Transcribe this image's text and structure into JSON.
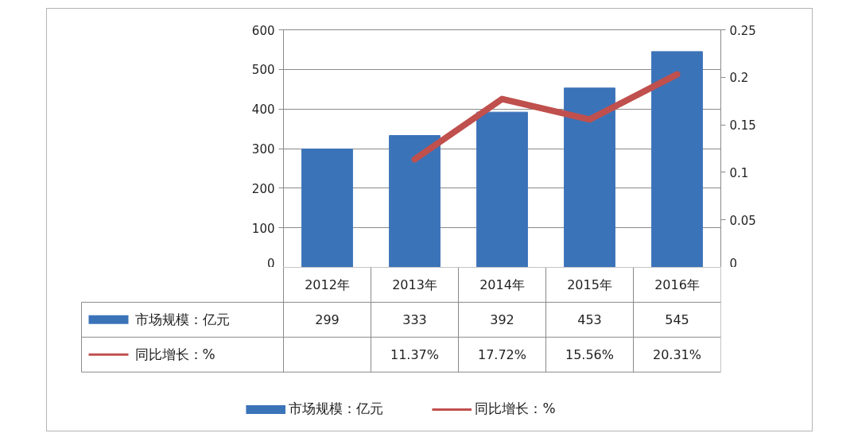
{
  "chart_data": {
    "type": "bar",
    "categories": [
      "2012年",
      "2013年",
      "2014年",
      "2015年",
      "2016年"
    ],
    "series": [
      {
        "name": "市场规模：亿元",
        "color": "#3b73b9",
        "values": [
          299,
          333,
          392,
          453,
          545
        ],
        "value_labels": [
          "299",
          "333",
          "392",
          "453",
          "545"
        ]
      },
      {
        "name": "同比增长：%",
        "type": "line",
        "axis": "y2",
        "color": "#c0504d",
        "values": [
          null,
          0.1137,
          0.1772,
          0.1556,
          0.2031
        ],
        "value_labels": [
          null,
          "11.37%",
          "17.72%",
          "15.56%",
          "20.31%"
        ]
      }
    ],
    "ylim": [
      0,
      600
    ],
    "yticks": [
      0,
      100,
      200,
      300,
      400,
      500,
      600
    ],
    "y2lim": [
      0,
      0.25
    ],
    "y2ticks": [
      0,
      0.05,
      0.1,
      0.15,
      0.2,
      0.25
    ],
    "grid": "y",
    "legend": "bottom",
    "line_style": "solid"
  }
}
